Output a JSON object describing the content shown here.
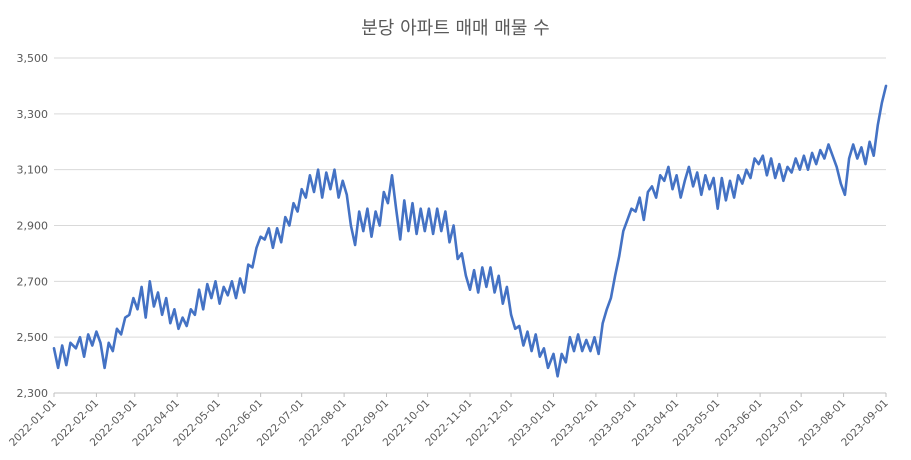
{
  "chart_data": {
    "type": "line",
    "title": "분당 아파트 매매 매물 수",
    "xlabel": "",
    "ylabel": "",
    "ylim": [
      2300,
      3500
    ],
    "yticks": [
      "2,300",
      "2,500",
      "2,700",
      "2,900",
      "3,100",
      "3,300",
      "3,500"
    ],
    "ytick_values": [
      2300,
      2500,
      2700,
      2900,
      3100,
      3300,
      3500
    ],
    "grid": "horizontal",
    "legend": "none",
    "line_color": "#4472C4",
    "x_start": "2022-01-01",
    "x_end": "2023-09-01",
    "xticks": [
      "2022-01-01",
      "2022-02-01",
      "2022-03-01",
      "2022-04-01",
      "2022-05-01",
      "2022-06-01",
      "2022-07-01",
      "2022-08-01",
      "2022-09-01",
      "2022-10-01",
      "2022-11-01",
      "2022-12-01",
      "2023-01-01",
      "2023-02-01",
      "2023-03-01",
      "2023-04-01",
      "2023-05-01",
      "2023-06-01",
      "2023-07-01",
      "2023-08-01",
      "2023-09-01"
    ],
    "series": [
      {
        "name": "",
        "points": [
          [
            "2022-01-01",
            2460
          ],
          [
            "2022-01-04",
            2390
          ],
          [
            "2022-01-07",
            2470
          ],
          [
            "2022-01-10",
            2400
          ],
          [
            "2022-01-13",
            2480
          ],
          [
            "2022-01-17",
            2460
          ],
          [
            "2022-01-20",
            2500
          ],
          [
            "2022-01-23",
            2430
          ],
          [
            "2022-01-26",
            2510
          ],
          [
            "2022-01-29",
            2470
          ],
          [
            "2022-02-01",
            2520
          ],
          [
            "2022-02-04",
            2480
          ],
          [
            "2022-02-07",
            2390
          ],
          [
            "2022-02-10",
            2480
          ],
          [
            "2022-02-13",
            2450
          ],
          [
            "2022-02-16",
            2530
          ],
          [
            "2022-02-19",
            2510
          ],
          [
            "2022-02-22",
            2570
          ],
          [
            "2022-02-25",
            2580
          ],
          [
            "2022-02-28",
            2640
          ],
          [
            "2022-03-03",
            2600
          ],
          [
            "2022-03-06",
            2680
          ],
          [
            "2022-03-09",
            2570
          ],
          [
            "2022-03-12",
            2700
          ],
          [
            "2022-03-15",
            2610
          ],
          [
            "2022-03-18",
            2660
          ],
          [
            "2022-03-21",
            2580
          ],
          [
            "2022-03-24",
            2640
          ],
          [
            "2022-03-27",
            2550
          ],
          [
            "2022-03-30",
            2600
          ],
          [
            "2022-04-02",
            2530
          ],
          [
            "2022-04-05",
            2570
          ],
          [
            "2022-04-08",
            2540
          ],
          [
            "2022-04-11",
            2600
          ],
          [
            "2022-04-14",
            2580
          ],
          [
            "2022-04-17",
            2670
          ],
          [
            "2022-04-20",
            2600
          ],
          [
            "2022-04-23",
            2690
          ],
          [
            "2022-04-26",
            2640
          ],
          [
            "2022-04-29",
            2700
          ],
          [
            "2022-05-02",
            2620
          ],
          [
            "2022-05-05",
            2680
          ],
          [
            "2022-05-08",
            2650
          ],
          [
            "2022-05-11",
            2700
          ],
          [
            "2022-05-14",
            2640
          ],
          [
            "2022-05-17",
            2710
          ],
          [
            "2022-05-20",
            2660
          ],
          [
            "2022-05-23",
            2760
          ],
          [
            "2022-05-26",
            2750
          ],
          [
            "2022-05-29",
            2820
          ],
          [
            "2022-06-01",
            2860
          ],
          [
            "2022-06-04",
            2850
          ],
          [
            "2022-06-07",
            2890
          ],
          [
            "2022-06-10",
            2820
          ],
          [
            "2022-06-13",
            2890
          ],
          [
            "2022-06-16",
            2840
          ],
          [
            "2022-06-19",
            2930
          ],
          [
            "2022-06-22",
            2900
          ],
          [
            "2022-06-25",
            2980
          ],
          [
            "2022-06-28",
            2950
          ],
          [
            "2022-07-01",
            3030
          ],
          [
            "2022-07-04",
            3000
          ],
          [
            "2022-07-07",
            3080
          ],
          [
            "2022-07-10",
            3020
          ],
          [
            "2022-07-13",
            3100
          ],
          [
            "2022-07-16",
            3000
          ],
          [
            "2022-07-19",
            3090
          ],
          [
            "2022-07-22",
            3030
          ],
          [
            "2022-07-25",
            3100
          ],
          [
            "2022-07-28",
            3000
          ],
          [
            "2022-07-31",
            3060
          ],
          [
            "2022-08-03",
            3010
          ],
          [
            "2022-08-06",
            2900
          ],
          [
            "2022-08-09",
            2830
          ],
          [
            "2022-08-12",
            2950
          ],
          [
            "2022-08-15",
            2880
          ],
          [
            "2022-08-18",
            2960
          ],
          [
            "2022-08-21",
            2860
          ],
          [
            "2022-08-24",
            2950
          ],
          [
            "2022-08-27",
            2900
          ],
          [
            "2022-08-30",
            3020
          ],
          [
            "2022-09-02",
            2980
          ],
          [
            "2022-09-05",
            3080
          ],
          [
            "2022-09-08",
            2960
          ],
          [
            "2022-09-11",
            2850
          ],
          [
            "2022-09-14",
            2990
          ],
          [
            "2022-09-17",
            2880
          ],
          [
            "2022-09-20",
            2980
          ],
          [
            "2022-09-23",
            2870
          ],
          [
            "2022-09-26",
            2960
          ],
          [
            "2022-09-29",
            2880
          ],
          [
            "2022-10-02",
            2960
          ],
          [
            "2022-10-05",
            2870
          ],
          [
            "2022-10-08",
            2960
          ],
          [
            "2022-10-11",
            2880
          ],
          [
            "2022-10-14",
            2950
          ],
          [
            "2022-10-17",
            2840
          ],
          [
            "2022-10-20",
            2900
          ],
          [
            "2022-10-23",
            2780
          ],
          [
            "2022-10-26",
            2800
          ],
          [
            "2022-10-29",
            2720
          ],
          [
            "2022-11-01",
            2670
          ],
          [
            "2022-11-04",
            2740
          ],
          [
            "2022-11-07",
            2660
          ],
          [
            "2022-11-10",
            2750
          ],
          [
            "2022-11-13",
            2680
          ],
          [
            "2022-11-16",
            2750
          ],
          [
            "2022-11-19",
            2660
          ],
          [
            "2022-11-22",
            2720
          ],
          [
            "2022-11-25",
            2620
          ],
          [
            "2022-11-28",
            2680
          ],
          [
            "2022-12-01",
            2580
          ],
          [
            "2022-12-04",
            2530
          ],
          [
            "2022-12-07",
            2540
          ],
          [
            "2022-12-10",
            2470
          ],
          [
            "2022-12-13",
            2520
          ],
          [
            "2022-12-16",
            2450
          ],
          [
            "2022-12-19",
            2510
          ],
          [
            "2022-12-22",
            2430
          ],
          [
            "2022-12-25",
            2460
          ],
          [
            "2022-12-28",
            2390
          ],
          [
            "2023-01-01",
            2440
          ],
          [
            "2023-01-04",
            2360
          ],
          [
            "2023-01-07",
            2440
          ],
          [
            "2023-01-10",
            2410
          ],
          [
            "2023-01-13",
            2500
          ],
          [
            "2023-01-16",
            2450
          ],
          [
            "2023-01-19",
            2510
          ],
          [
            "2023-01-22",
            2450
          ],
          [
            "2023-01-25",
            2490
          ],
          [
            "2023-01-28",
            2450
          ],
          [
            "2023-01-31",
            2500
          ],
          [
            "2023-02-03",
            2440
          ],
          [
            "2023-02-06",
            2550
          ],
          [
            "2023-02-09",
            2600
          ],
          [
            "2023-02-12",
            2640
          ],
          [
            "2023-02-15",
            2720
          ],
          [
            "2023-02-18",
            2790
          ],
          [
            "2023-02-21",
            2880
          ],
          [
            "2023-02-24",
            2920
          ],
          [
            "2023-02-27",
            2960
          ],
          [
            "2023-03-02",
            2950
          ],
          [
            "2023-03-05",
            3000
          ],
          [
            "2023-03-08",
            2920
          ],
          [
            "2023-03-11",
            3020
          ],
          [
            "2023-03-14",
            3040
          ],
          [
            "2023-03-17",
            3000
          ],
          [
            "2023-03-20",
            3080
          ],
          [
            "2023-03-23",
            3060
          ],
          [
            "2023-03-26",
            3110
          ],
          [
            "2023-03-29",
            3030
          ],
          [
            "2023-04-01",
            3080
          ],
          [
            "2023-04-04",
            3000
          ],
          [
            "2023-04-07",
            3060
          ],
          [
            "2023-04-10",
            3110
          ],
          [
            "2023-04-13",
            3040
          ],
          [
            "2023-04-16",
            3090
          ],
          [
            "2023-04-19",
            3010
          ],
          [
            "2023-04-22",
            3080
          ],
          [
            "2023-04-25",
            3030
          ],
          [
            "2023-04-28",
            3070
          ],
          [
            "2023-05-01",
            2960
          ],
          [
            "2023-05-04",
            3070
          ],
          [
            "2023-05-07",
            2990
          ],
          [
            "2023-05-10",
            3060
          ],
          [
            "2023-05-13",
            3000
          ],
          [
            "2023-05-16",
            3080
          ],
          [
            "2023-05-19",
            3050
          ],
          [
            "2023-05-22",
            3100
          ],
          [
            "2023-05-25",
            3070
          ],
          [
            "2023-05-28",
            3140
          ],
          [
            "2023-05-31",
            3120
          ],
          [
            "2023-06-03",
            3150
          ],
          [
            "2023-06-06",
            3080
          ],
          [
            "2023-06-09",
            3140
          ],
          [
            "2023-06-12",
            3070
          ],
          [
            "2023-06-15",
            3120
          ],
          [
            "2023-06-18",
            3060
          ],
          [
            "2023-06-21",
            3110
          ],
          [
            "2023-06-24",
            3090
          ],
          [
            "2023-06-27",
            3140
          ],
          [
            "2023-06-30",
            3100
          ],
          [
            "2023-07-03",
            3150
          ],
          [
            "2023-07-06",
            3100
          ],
          [
            "2023-07-09",
            3160
          ],
          [
            "2023-07-12",
            3120
          ],
          [
            "2023-07-15",
            3170
          ],
          [
            "2023-07-18",
            3140
          ],
          [
            "2023-07-21",
            3190
          ],
          [
            "2023-07-24",
            3150
          ],
          [
            "2023-07-27",
            3110
          ],
          [
            "2023-07-30",
            3050
          ],
          [
            "2023-08-02",
            3010
          ],
          [
            "2023-08-05",
            3140
          ],
          [
            "2023-08-08",
            3190
          ],
          [
            "2023-08-11",
            3140
          ],
          [
            "2023-08-14",
            3180
          ],
          [
            "2023-08-17",
            3120
          ],
          [
            "2023-08-20",
            3200
          ],
          [
            "2023-08-23",
            3150
          ],
          [
            "2023-08-26",
            3260
          ],
          [
            "2023-08-29",
            3340
          ],
          [
            "2023-09-01",
            3400
          ]
        ]
      }
    ]
  }
}
